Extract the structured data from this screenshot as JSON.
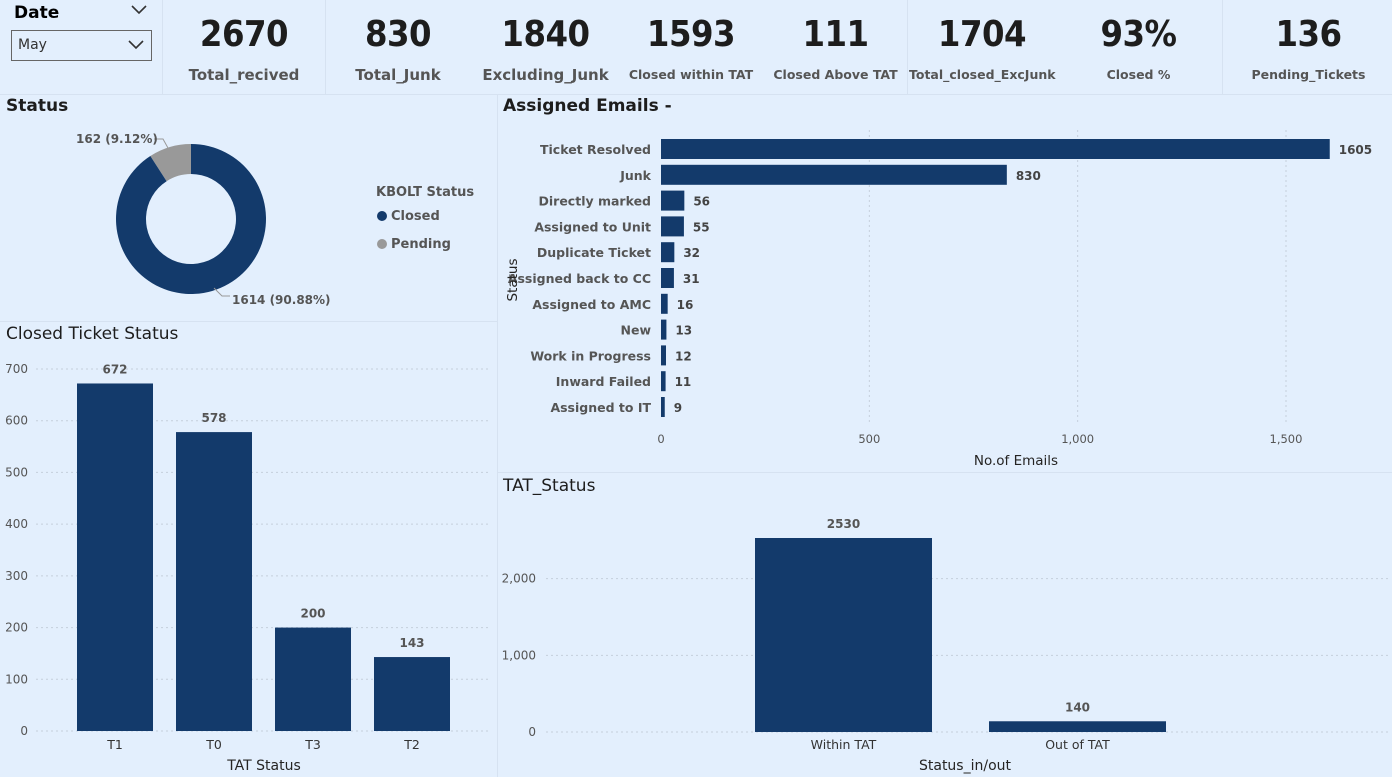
{
  "slicer": {
    "title": "Date",
    "value": "May"
  },
  "kpis": [
    {
      "value": "2670",
      "label": "Total_recived"
    },
    {
      "value": "830",
      "label": "Total_Junk"
    },
    {
      "value": "1840",
      "label": "Excluding_Junk"
    },
    {
      "value": "1593",
      "label": "Closed within TAT"
    },
    {
      "value": "111",
      "label": "Closed Above TAT"
    },
    {
      "value": "1704",
      "label": "Total_closed_ExcJunk"
    },
    {
      "value": "93%",
      "label": "Closed %"
    },
    {
      "value": "136",
      "label": "Pending_Tickets"
    }
  ],
  "sections": {
    "status": "Status",
    "assigned": "Assigned Emails -",
    "closed": "Closed Ticket Status",
    "tat": "TAT_Status"
  },
  "colors": {
    "primary": "#133a6b",
    "pending": "#999999",
    "bg": "#e3effd"
  },
  "chart_data": [
    {
      "type": "pie",
      "subtype": "donut",
      "title": "Status",
      "legend_title": "KBOLT Status",
      "legend_position": "right",
      "categories": [
        "Closed",
        "Pending"
      ],
      "values": [
        1614,
        162
      ],
      "data_labels": [
        "1614 (90.88%)",
        "162 (9.12%)"
      ],
      "colors": [
        "#133a6b",
        "#999999"
      ]
    },
    {
      "type": "bar",
      "orientation": "horizontal",
      "title": "Assigned Emails -",
      "xlabel": "No.of Emails",
      "ylabel": "Status",
      "categories": [
        "Ticket Resolved",
        "Junk",
        "Directly marked",
        "Assigned to Unit",
        "Duplicate Ticket",
        "Assigned back to CC",
        "Assigned to AMC",
        "New",
        "Work in Progress",
        "Inward Failed",
        "Assigned to IT"
      ],
      "values": [
        1605,
        830,
        56,
        55,
        32,
        31,
        16,
        13,
        12,
        11,
        9
      ],
      "xticks": [
        "0",
        "500",
        "1,000",
        "1,500"
      ],
      "xlim": [
        0,
        1700
      ],
      "grid": true
    },
    {
      "type": "bar",
      "title": "Closed Ticket Status",
      "xlabel": "TAT Status",
      "ylabel": "",
      "categories": [
        "T1",
        "T0",
        "T3",
        "T2"
      ],
      "values": [
        672,
        578,
        200,
        143
      ],
      "yticks": [
        "0",
        "100",
        "200",
        "300",
        "400",
        "500",
        "600",
        "700"
      ],
      "ylim": [
        0,
        700
      ],
      "grid": true
    },
    {
      "type": "bar",
      "title": "TAT_Status",
      "xlabel": "Status_in/out",
      "ylabel": "",
      "categories": [
        "Within TAT",
        "Out of TAT"
      ],
      "values": [
        2530,
        140
      ],
      "yticks": [
        "0",
        "1,000",
        "2,000"
      ],
      "ylim": [
        0,
        2530
      ],
      "grid": true
    }
  ]
}
